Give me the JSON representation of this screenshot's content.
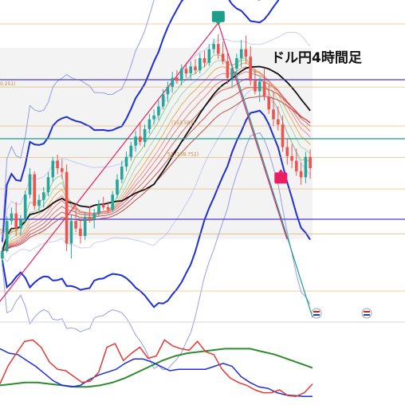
{
  "chart_data": {
    "type": "candlestick",
    "title": "ドル円4時間足",
    "fib_labels": [
      "0.251)",
      "(153.583)",
      "51 (158.752)",
      "57.657)"
    ],
    "fib_levels": [
      0.236,
      0.382,
      0.5,
      0.618,
      0.786
    ],
    "markers": [
      {
        "name": "top-marker",
        "color": "#1e9d8b"
      },
      {
        "name": "bottom-marker",
        "color": "#e91e63"
      }
    ],
    "candles": [
      [
        120,
        135,
        110,
        130
      ],
      [
        130,
        176,
        128,
        170
      ],
      [
        170,
        188,
        165,
        180
      ],
      [
        180,
        195,
        150,
        160
      ],
      [
        160,
        178,
        150,
        172
      ],
      [
        172,
        210,
        168,
        205
      ],
      [
        205,
        240,
        200,
        232
      ],
      [
        232,
        236,
        185,
        190
      ],
      [
        190,
        205,
        180,
        198
      ],
      [
        198,
        215,
        188,
        208
      ],
      [
        208,
        235,
        203,
        228
      ],
      [
        228,
        255,
        222,
        250
      ],
      [
        250,
        258,
        232,
        240
      ],
      [
        240,
        252,
        226,
        235
      ],
      [
        235,
        245,
        130,
        140
      ],
      [
        140,
        178,
        120,
        170
      ],
      [
        170,
        188,
        155,
        160
      ],
      [
        160,
        172,
        140,
        150
      ],
      [
        150,
        182,
        145,
        175
      ],
      [
        175,
        190,
        168,
        172
      ],
      [
        172,
        186,
        160,
        180
      ],
      [
        180,
        198,
        176,
        192
      ],
      [
        192,
        202,
        185,
        188
      ],
      [
        188,
        196,
        180,
        185
      ],
      [
        185,
        210,
        182,
        205
      ],
      [
        205,
        232,
        200,
        225
      ],
      [
        225,
        250,
        220,
        242
      ],
      [
        242,
        262,
        236,
        255
      ],
      [
        255,
        275,
        250,
        270
      ],
      [
        270,
        290,
        262,
        282
      ],
      [
        282,
        300,
        270,
        275
      ],
      [
        275,
        298,
        268,
        292
      ],
      [
        292,
        312,
        286,
        305
      ],
      [
        305,
        318,
        298,
        310
      ],
      [
        310,
        330,
        304,
        322
      ],
      [
        322,
        345,
        318,
        338
      ],
      [
        338,
        355,
        328,
        348
      ],
      [
        348,
        368,
        340,
        360
      ],
      [
        360,
        370,
        352,
        356
      ],
      [
        356,
        378,
        350,
        372
      ],
      [
        372,
        380,
        360,
        366
      ],
      [
        366,
        382,
        358,
        375
      ],
      [
        375,
        385,
        365,
        370
      ],
      [
        370,
        392,
        366,
        386
      ],
      [
        386,
        396,
        374,
        380
      ],
      [
        380,
        405,
        376,
        398
      ],
      [
        398,
        412,
        392,
        405
      ],
      [
        405,
        418,
        385,
        392
      ],
      [
        392,
        408,
        378,
        382
      ],
      [
        382,
        396,
        352,
        360
      ],
      [
        360,
        378,
        346,
        372
      ],
      [
        372,
        392,
        362,
        386
      ],
      [
        386,
        410,
        374,
        398
      ],
      [
        398,
        416,
        378,
        388
      ],
      [
        388,
        402,
        350,
        356
      ],
      [
        356,
        372,
        338,
        342
      ],
      [
        342,
        360,
        328,
        355
      ],
      [
        355,
        372,
        330,
        335
      ],
      [
        335,
        350,
        312,
        318
      ],
      [
        318,
        342,
        296,
        305
      ],
      [
        305,
        322,
        290,
        298
      ],
      [
        298,
        310,
        262,
        268
      ],
      [
        268,
        280,
        245,
        256
      ],
      [
        256,
        272,
        240,
        250
      ],
      [
        250,
        266,
        230,
        236
      ],
      [
        236,
        248,
        218,
        228
      ],
      [
        228,
        262,
        220,
        255
      ],
      [
        255,
        265,
        226,
        240
      ]
    ],
    "oscillators": {
      "red": [
        20,
        45,
        62,
        78,
        80,
        70,
        50,
        40,
        38,
        30,
        22,
        24,
        36,
        70,
        75,
        52,
        62,
        70,
        55,
        58,
        80,
        72,
        68,
        66,
        78,
        64,
        60,
        40,
        28,
        22,
        18,
        12,
        8,
        8,
        12,
        4,
        3,
        8,
        20
      ],
      "blue": [
        68,
        62,
        60,
        52,
        44,
        34,
        24,
        18,
        16,
        18,
        26,
        32,
        36,
        40,
        48,
        54,
        54,
        50,
        44,
        38,
        40,
        40,
        40,
        40,
        44,
        48,
        44,
        30,
        22,
        16,
        14,
        8,
        5,
        4,
        3,
        3
      ],
      "green": [
        18,
        20,
        22,
        22,
        20,
        18,
        16,
        16,
        18,
        22,
        28,
        36,
        44,
        52,
        58,
        62,
        64,
        66,
        68,
        68,
        68,
        64,
        60,
        54,
        48,
        42
      ]
    }
  }
}
